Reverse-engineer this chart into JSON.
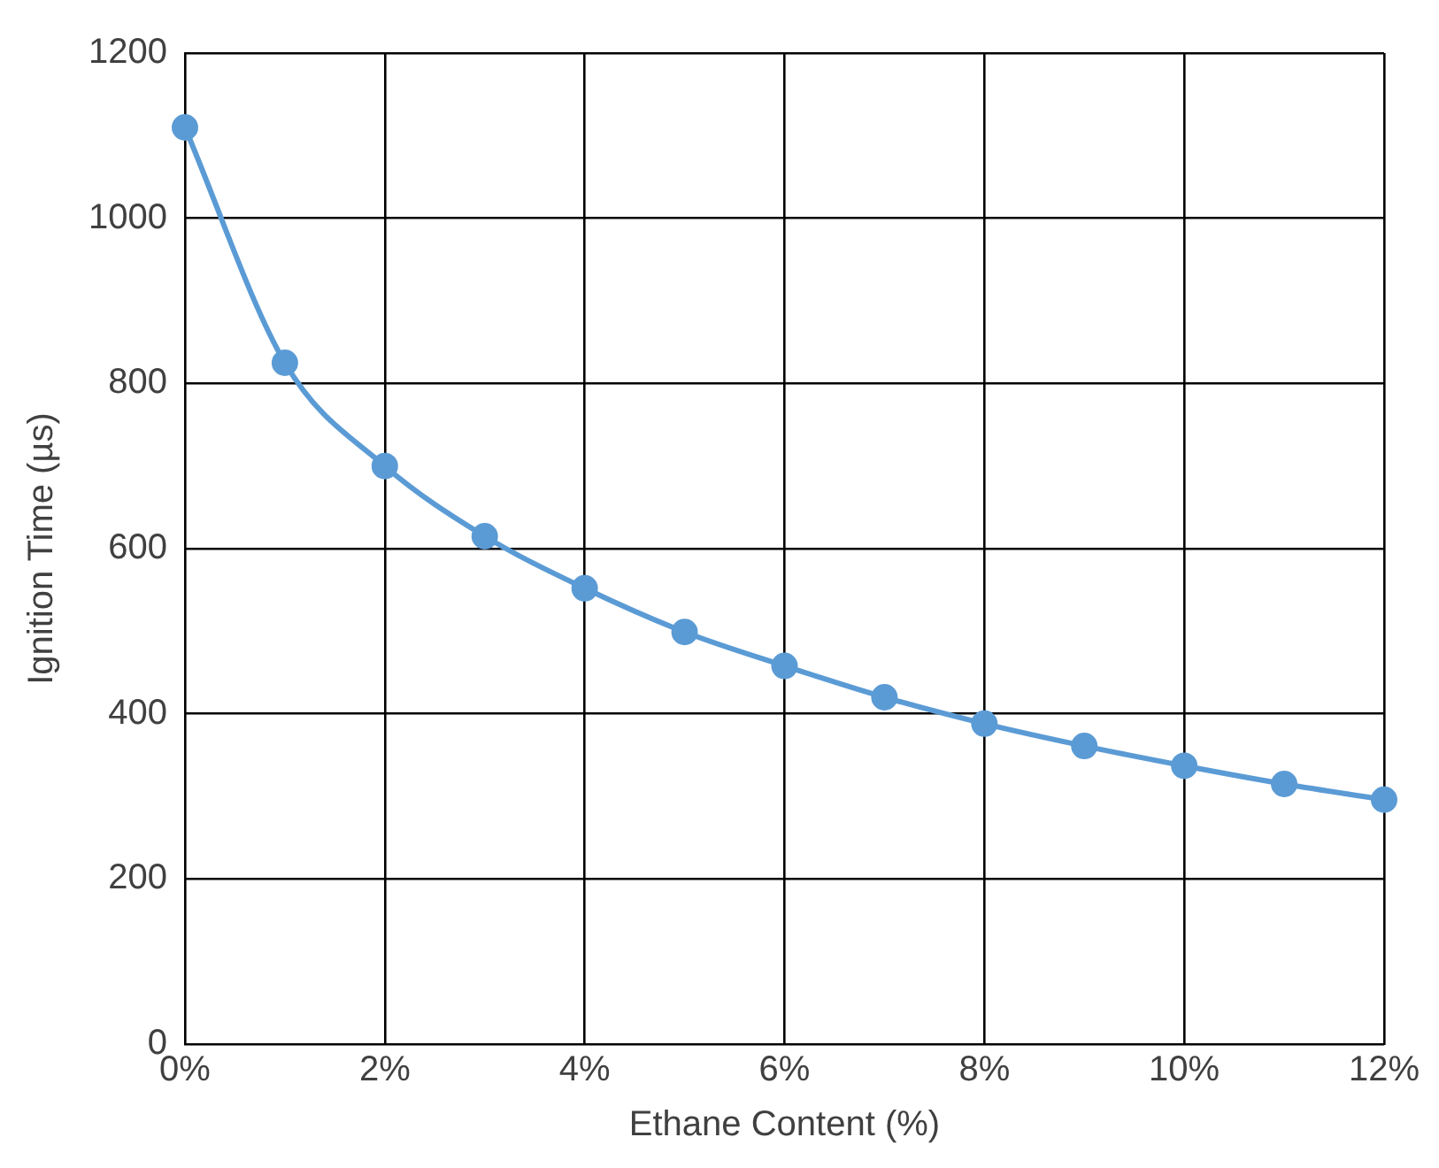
{
  "chart_data": {
    "type": "line",
    "xlabel": "Ethane Content (%)",
    "ylabel": "Ignition Time (µs)",
    "x": [
      0,
      1,
      2,
      3,
      4,
      5,
      6,
      7,
      8,
      9,
      10,
      11,
      12
    ],
    "series": [
      {
        "color": "#5b9bd5",
        "values": [
          1110,
          825,
          700,
          615,
          552,
          499,
          458,
          420,
          388,
          361,
          337,
          315,
          296
        ]
      }
    ],
    "xlim": [
      0,
      12
    ],
    "xticks": [
      {
        "value": 0,
        "label": "0%"
      },
      {
        "value": 2,
        "label": "2%"
      },
      {
        "value": 4,
        "label": "4%"
      },
      {
        "value": 6,
        "label": "6%"
      },
      {
        "value": 8,
        "label": "8%"
      },
      {
        "value": 10,
        "label": "10%"
      },
      {
        "value": 12,
        "label": "12%"
      }
    ],
    "ylim": [
      0,
      1200
    ],
    "yticks": [
      0,
      200,
      400,
      600,
      800,
      1000,
      1200
    ],
    "grid": true,
    "legend": false,
    "marker": "circle",
    "line_style": "solid"
  }
}
